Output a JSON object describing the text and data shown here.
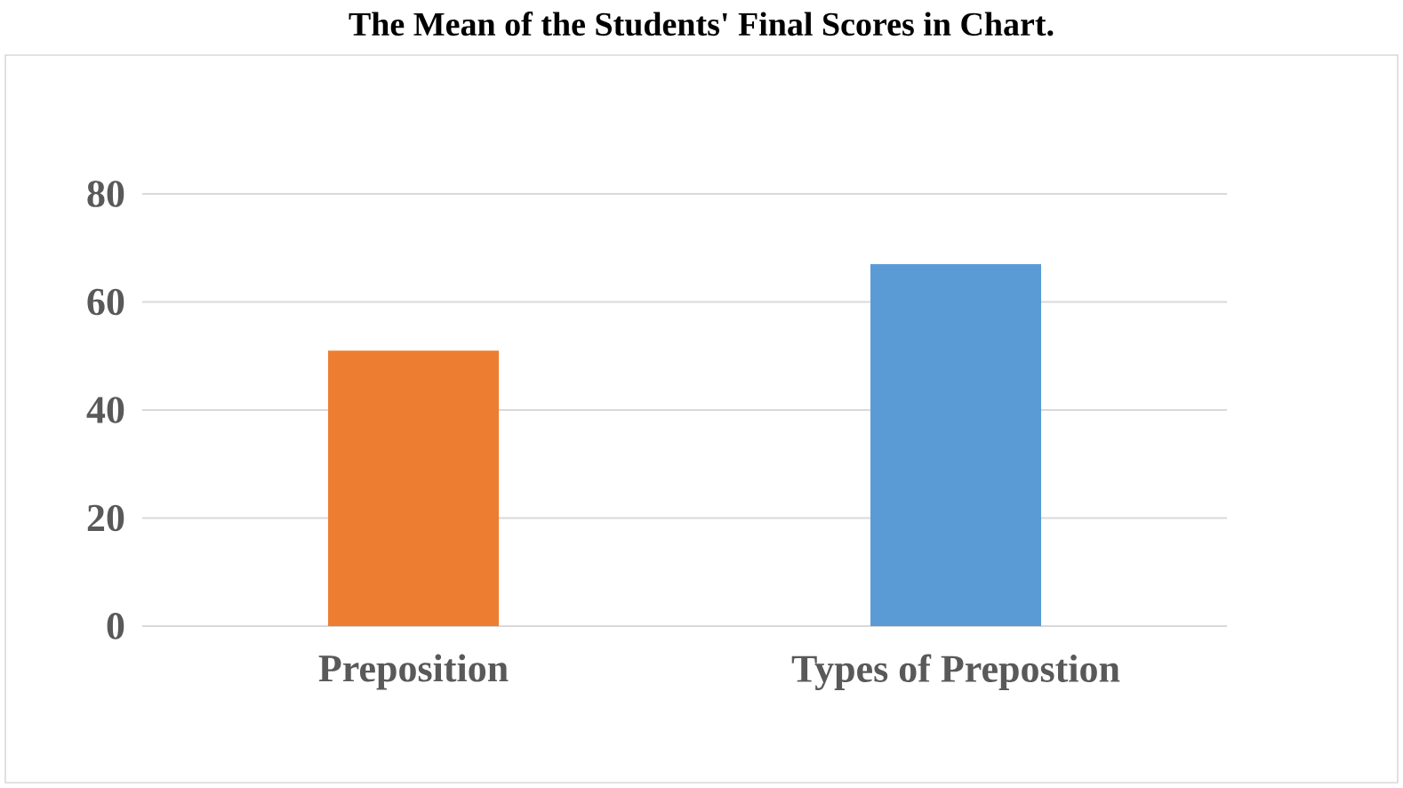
{
  "chart_data": {
    "type": "bar",
    "title": "The Mean of the Students' Final Scores in Chart.",
    "categories": [
      "Preposition",
      "Types of Prepostion"
    ],
    "values": [
      51,
      67
    ],
    "colors": [
      "#ed7d31",
      "#5b9bd5"
    ],
    "ylim": [
      0,
      80
    ],
    "yticks": [
      0,
      20,
      40,
      60,
      80
    ],
    "grid": "y"
  }
}
